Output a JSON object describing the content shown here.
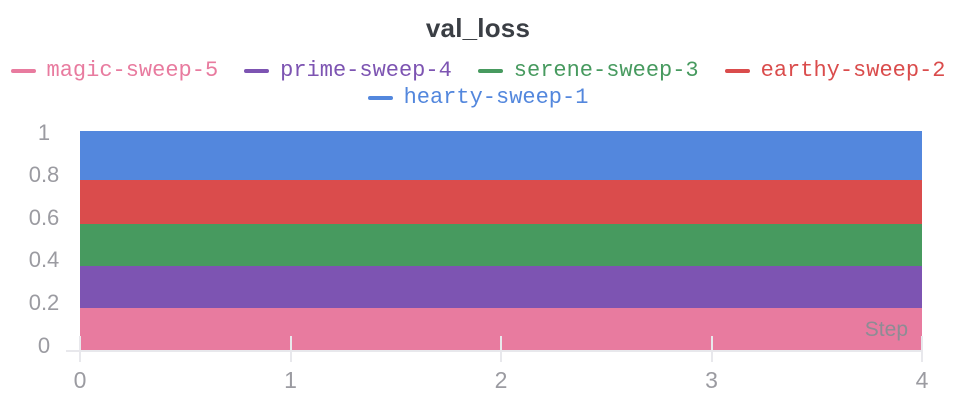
{
  "panel": {
    "title": "val_loss"
  },
  "chart_data": {
    "type": "area",
    "title": "val_loss",
    "xlabel": "Step",
    "ylabel": "",
    "xlim": [
      0,
      4
    ],
    "ylim": [
      0,
      1
    ],
    "grid": false,
    "legend_position": "top",
    "x_ticks": [
      {
        "label": "0",
        "value": 0
      },
      {
        "label": "1",
        "value": 1
      },
      {
        "label": "2",
        "value": 2
      },
      {
        "label": "3",
        "value": 3
      },
      {
        "label": "4",
        "value": 4
      }
    ],
    "y_ticks": [
      {
        "label": "0",
        "value": 0
      },
      {
        "label": "0.2",
        "value": 0.2
      },
      {
        "label": "0.4",
        "value": 0.4
      },
      {
        "label": "0.6",
        "value": 0.6
      },
      {
        "label": "0.8",
        "value": 0.8
      },
      {
        "label": "1",
        "value": 1
      }
    ],
    "series": [
      {
        "name": "magic-sweep-5",
        "color": "#E87B9F",
        "x_span": [
          0,
          4
        ],
        "band": [
          0.0,
          0.2
        ]
      },
      {
        "name": "prime-sweep-4",
        "color": "#7D54B2",
        "x_span": [
          0,
          4
        ],
        "band": [
          0.2,
          0.39
        ]
      },
      {
        "name": "serene-sweep-3",
        "color": "#479A5F",
        "x_span": [
          0,
          4
        ],
        "band": [
          0.39,
          0.58
        ]
      },
      {
        "name": "earthy-sweep-2",
        "color": "#DA4C4C",
        "x_span": [
          0,
          4
        ],
        "band": [
          0.58,
          0.78
        ]
      },
      {
        "name": "hearty-sweep-1",
        "color": "#5387DD",
        "x_span": [
          0,
          4
        ],
        "band": [
          0.78,
          1.0
        ]
      }
    ],
    "colors": {
      "title_text": "#3a3e44",
      "tick_text": "#9b9ba1",
      "axis_line": "#e8e8ec",
      "step_text": "#8d8c94"
    }
  }
}
